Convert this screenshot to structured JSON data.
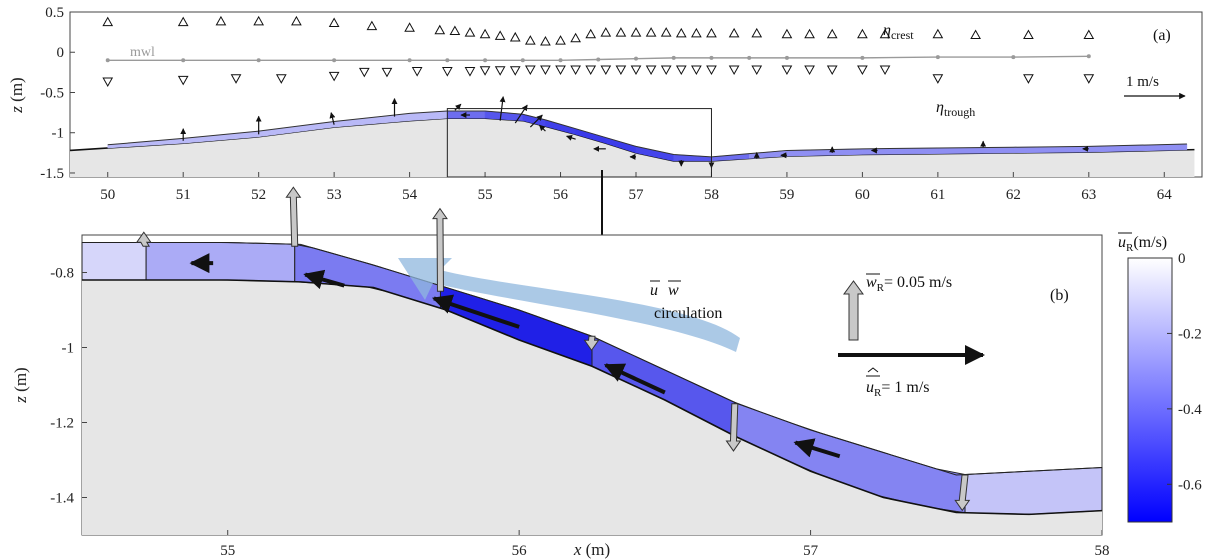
{
  "chart_data": [
    {
      "panel": "(a)",
      "type": "line",
      "xlim": [
        49.5,
        64.5
      ],
      "ylim": [
        -1.55,
        0.5
      ],
      "xticks": [
        "50",
        "51",
        "52",
        "53",
        "54",
        "55",
        "56",
        "57",
        "58",
        "59",
        "60",
        "61",
        "62",
        "63",
        "64"
      ],
      "yticks": [
        "0.5",
        "0",
        "-0.5",
        "-1",
        "-1.5"
      ],
      "ylabel_var": "z",
      "ylabel_unit": " (m)",
      "labels": {
        "eta_crest": "η",
        "eta_crest_sub": "crest",
        "eta_trough": "η",
        "eta_trough_sub": "trough",
        "mwl": "mwl",
        "scale": "1 m/s"
      },
      "crest": {
        "x": [
          50,
          51,
          51.5,
          52,
          52.5,
          53,
          53.5,
          54,
          54.4,
          54.6,
          54.8,
          55,
          55.2,
          55.4,
          55.6,
          55.8,
          56,
          56.2,
          56.4,
          56.6,
          56.8,
          57,
          57.2,
          57.4,
          57.6,
          57.8,
          58,
          58.3,
          58.6,
          59,
          59.3,
          59.6,
          60,
          60.3,
          61,
          61.5,
          62.2,
          63
        ],
        "y": [
          0.38,
          0.38,
          0.39,
          0.39,
          0.39,
          0.37,
          0.33,
          0.31,
          0.28,
          0.27,
          0.25,
          0.23,
          0.21,
          0.19,
          0.15,
          0.14,
          0.15,
          0.18,
          0.23,
          0.25,
          0.25,
          0.25,
          0.25,
          0.25,
          0.24,
          0.24,
          0.24,
          0.24,
          0.24,
          0.23,
          0.23,
          0.23,
          0.23,
          0.23,
          0.23,
          0.22,
          0.22,
          0.22
        ]
      },
      "trough": {
        "x": [
          50,
          51,
          51.7,
          52.3,
          53,
          53.4,
          53.7,
          54.1,
          54.5,
          54.8,
          55,
          55.2,
          55.4,
          55.6,
          55.8,
          56,
          56.2,
          56.4,
          56.6,
          56.8,
          57,
          57.2,
          57.4,
          57.6,
          57.8,
          58,
          58.3,
          58.6,
          59,
          59.3,
          59.6,
          60,
          60.3,
          61,
          62.2,
          63
        ],
        "y": [
          -0.37,
          -0.35,
          -0.33,
          -0.33,
          -0.3,
          -0.25,
          -0.25,
          -0.24,
          -0.24,
          -0.24,
          -0.23,
          -0.23,
          -0.23,
          -0.22,
          -0.22,
          -0.22,
          -0.22,
          -0.22,
          -0.22,
          -0.22,
          -0.22,
          -0.22,
          -0.22,
          -0.22,
          -0.22,
          -0.22,
          -0.22,
          -0.22,
          -0.22,
          -0.22,
          -0.22,
          -0.22,
          -0.22,
          -0.33,
          -0.33,
          -0.33
        ]
      },
      "mwl_line": {
        "x": [
          50,
          51,
          52,
          53,
          54,
          54.5,
          55,
          55.5,
          56,
          56.5,
          57,
          57.5,
          58,
          58.5,
          59,
          60,
          61,
          62,
          63
        ],
        "y": [
          -0.1,
          -0.1,
          -0.1,
          -0.1,
          -0.1,
          -0.1,
          -0.1,
          -0.1,
          -0.1,
          -0.09,
          -0.08,
          -0.07,
          -0.07,
          -0.07,
          -0.07,
          -0.07,
          -0.06,
          -0.06,
          -0.05
        ]
      },
      "bed": {
        "x": [
          49.5,
          51,
          52,
          53,
          54,
          54.5,
          55,
          55.5,
          55.8,
          56.2,
          56.6,
          57,
          57.5,
          58,
          58.5,
          59,
          60,
          61,
          62,
          63,
          64.4
        ],
        "y": [
          -1.22,
          -1.13,
          -1.05,
          -0.93,
          -0.85,
          -0.82,
          -0.82,
          -0.85,
          -0.92,
          -1.02,
          -1.13,
          -1.25,
          -1.35,
          -1.35,
          -1.32,
          -1.29,
          -1.27,
          -1.26,
          -1.25,
          -1.24,
          -1.21
        ]
      },
      "flow_band_top": {
        "x": [
          50,
          51,
          52,
          53,
          54,
          54.5,
          55,
          55.5,
          55.8,
          56.2,
          56.6,
          57,
          57.5,
          58,
          58.5,
          59,
          60,
          61,
          62,
          63,
          64.3
        ],
        "y": [
          -1.15,
          -1.07,
          -0.98,
          -0.86,
          -0.76,
          -0.73,
          -0.73,
          -0.77,
          -0.84,
          -0.95,
          -1.06,
          -1.17,
          -1.27,
          -1.3,
          -1.26,
          -1.22,
          -1.2,
          -1.19,
          -1.18,
          -1.17,
          -1.14
        ]
      },
      "velocity_arrows": [
        {
          "x": 51,
          "z": -1.1,
          "u": 0,
          "w": 0.2
        },
        {
          "x": 52,
          "z": -1.02,
          "u": 0,
          "w": 0.3
        },
        {
          "x": 53,
          "z": -0.9,
          "u": -0.05,
          "w": 0.2
        },
        {
          "x": 53.8,
          "z": -0.8,
          "u": 0,
          "w": 0.3
        },
        {
          "x": 54.6,
          "z": -0.72,
          "u": 0.1,
          "w": 0.1
        },
        {
          "x": 54.8,
          "z": -0.78,
          "u": -0.15,
          "w": 0
        },
        {
          "x": 55.2,
          "z": -0.85,
          "u": 0.05,
          "w": 0.4
        },
        {
          "x": 55.4,
          "z": -0.88,
          "u": 0.2,
          "w": 0.3
        },
        {
          "x": 55.6,
          "z": -0.93,
          "u": 0.2,
          "w": 0.2
        },
        {
          "x": 55.8,
          "z": -0.98,
          "u": -0.1,
          "w": 0.1
        },
        {
          "x": 56.2,
          "z": -1.08,
          "u": -0.15,
          "w": 0.05
        },
        {
          "x": 56.6,
          "z": -1.2,
          "u": -0.2,
          "w": 0
        },
        {
          "x": 57,
          "z": -1.3,
          "u": -0.1,
          "w": 0
        },
        {
          "x": 57.6,
          "z": -1.34,
          "u": 0,
          "w": -0.1
        },
        {
          "x": 58,
          "z": -1.36,
          "u": 0,
          "w": -0.1
        },
        {
          "x": 58.6,
          "z": -1.32,
          "u": 0,
          "w": 0.1
        },
        {
          "x": 59,
          "z": -1.28,
          "u": -0.1,
          "w": 0
        },
        {
          "x": 59.6,
          "z": -1.25,
          "u": 0,
          "w": 0.1
        },
        {
          "x": 60.2,
          "z": -1.22,
          "u": -0.1,
          "w": 0
        },
        {
          "x": 61.6,
          "z": -1.18,
          "u": 0,
          "w": 0.1
        },
        {
          "x": 63,
          "z": -1.2,
          "u": -0.1,
          "w": 0
        }
      ],
      "zoom_box": {
        "x": [
          54.5,
          58
        ],
        "z": [
          -1.55,
          -0.7
        ]
      }
    },
    {
      "panel": "(b)",
      "type": "area",
      "xlim": [
        54.5,
        58
      ],
      "ylim": [
        -1.5,
        -0.7
      ],
      "xticks": [
        "55",
        "56",
        "57",
        "58"
      ],
      "yticks": [
        "-0.8",
        "-1",
        "-1.2",
        "-1.4"
      ],
      "xlabel_var": "x",
      "xlabel_unit": " (m)",
      "ylabel_var": "z",
      "ylabel_unit": " (m)",
      "labels": {
        "circ_u": "u",
        "circ_w": "w",
        "circ_text": "circulation",
        "w_scale": "= 0.05 m/s",
        "w_scale_sym": "w",
        "w_scale_sub": "R",
        "u_scale": "= 1 m/s",
        "u_scale_sym": "u",
        "u_scale_sub": "R"
      },
      "bed": {
        "x": [
          54.5,
          54.75,
          55,
          55.25,
          55.5,
          55.75,
          56,
          56.25,
          56.5,
          56.75,
          57,
          57.25,
          57.5,
          57.75,
          58
        ],
        "y": [
          -0.82,
          -0.82,
          -0.82,
          -0.825,
          -0.84,
          -0.9,
          -0.98,
          -1.05,
          -1.14,
          -1.24,
          -1.33,
          -1.4,
          -1.44,
          -1.445,
          -1.435
        ]
      },
      "top": {
        "x": [
          54.5,
          54.75,
          55,
          55.25,
          55.5,
          55.75,
          56,
          56.25,
          56.5,
          56.75,
          57,
          57.25,
          57.5,
          57.75,
          58
        ],
        "y": [
          -0.72,
          -0.72,
          -0.72,
          -0.725,
          -0.78,
          -0.84,
          -0.9,
          -0.97,
          -1.06,
          -1.15,
          -1.22,
          -1.28,
          -1.34,
          -1.33,
          -1.32
        ]
      },
      "sections": [
        {
          "x0": 54.5,
          "x1": 54.72,
          "u": -0.08
        },
        {
          "x0": 54.72,
          "x1": 55.23,
          "u": -0.22
        },
        {
          "x0": 55.23,
          "x1": 55.73,
          "u": -0.38
        },
        {
          "x0": 55.73,
          "x1": 56.25,
          "u": -0.68
        },
        {
          "x0": 56.25,
          "x1": 56.74,
          "u": -0.5
        },
        {
          "x0": 56.74,
          "x1": 57.53,
          "u": -0.35
        },
        {
          "x0": 57.53,
          "x1": 58,
          "u": -0.14
        }
      ],
      "u_arrows": [
        {
          "x": 54.95,
          "z": -0.775,
          "u": -0.15
        },
        {
          "x": 55.4,
          "z": -0.835,
          "u": -0.28
        },
        {
          "x": 56.0,
          "z": -0.945,
          "u": -0.62
        },
        {
          "x": 56.5,
          "z": -1.12,
          "u": -0.45
        },
        {
          "x": 57.1,
          "z": -1.29,
          "u": -0.32
        }
      ],
      "w_arrows": [
        {
          "x": 54.72,
          "z": -0.73,
          "w": 0.01
        },
        {
          "x": 55.23,
          "z": -0.73,
          "w": 0.05
        },
        {
          "x": 55.73,
          "z": -0.85,
          "w": 0.07
        },
        {
          "x": 56.25,
          "z": -0.97,
          "w": -0.002
        },
        {
          "x": 56.74,
          "z": -1.15,
          "w": -0.04
        },
        {
          "x": 57.53,
          "z": -1.34,
          "w": -0.03
        }
      ],
      "colorbar": {
        "title_sym": "u",
        "title_sub": "R",
        "title_unit": "(m/s)",
        "ticks": [
          "0",
          "-0.2",
          "-0.4",
          "-0.6"
        ],
        "range": [
          -0.7,
          0
        ]
      }
    }
  ],
  "colors": {
    "bed_fill": "#e6e6e6",
    "flow_light": "#eeeefd",
    "flow_dark": "#1a1ae6",
    "circulation": "#8fb7dd",
    "mwl": "#9a9a9a",
    "w_arrow": "#c8c8c8"
  }
}
